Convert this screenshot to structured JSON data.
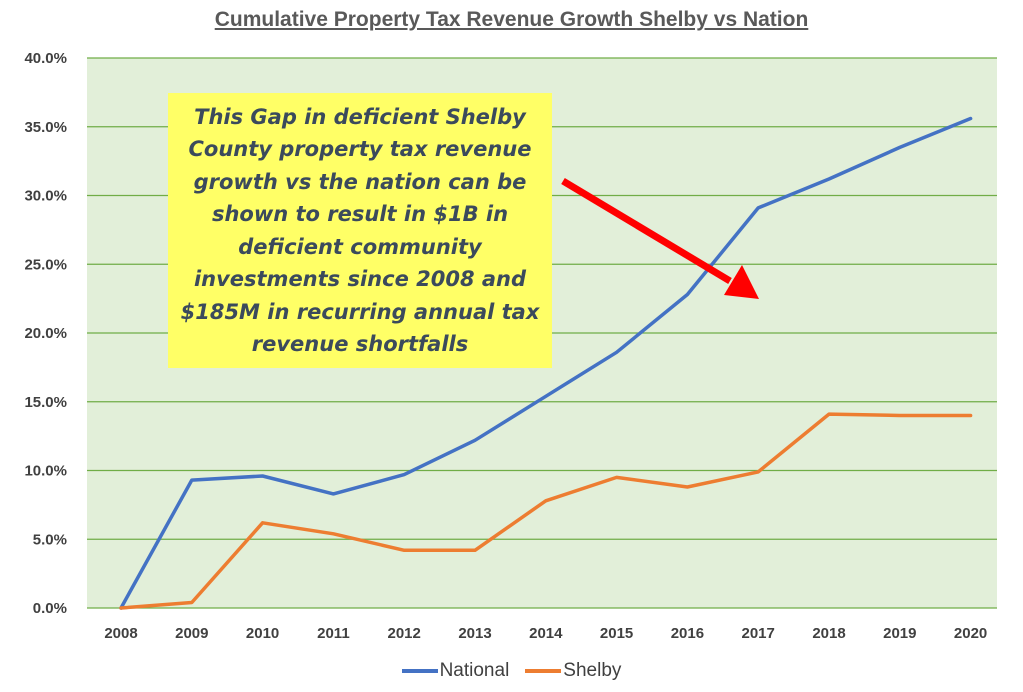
{
  "colors": {
    "plot_bg": "#e2efd9",
    "grid": "#70ad47",
    "national": "#4472c4",
    "shelby": "#ed7d31",
    "arrow": "#ff0000",
    "annotation_bg": "#ffff66"
  },
  "chart_data": {
    "type": "line",
    "title": "Cumulative Property Tax Revenue Growth Shelby vs Nation",
    "xlabel": "",
    "ylabel": "",
    "categories": [
      "2008",
      "2009",
      "2010",
      "2011",
      "2012",
      "2013",
      "2014",
      "2015",
      "2016",
      "2017",
      "2018",
      "2019",
      "2020"
    ],
    "ylim": [
      0,
      40
    ],
    "yticks": [
      "0.0%",
      "5.0%",
      "10.0%",
      "15.0%",
      "20.0%",
      "25.0%",
      "30.0%",
      "35.0%",
      "40.0%"
    ],
    "grid": true,
    "legend_position": "bottom",
    "series": [
      {
        "name": "National",
        "values": [
          0.0,
          9.3,
          9.6,
          8.3,
          9.7,
          12.2,
          15.4,
          18.6,
          22.8,
          29.1,
          31.2,
          33.5,
          35.6
        ]
      },
      {
        "name": "Shelby",
        "values": [
          0.0,
          0.4,
          6.2,
          5.4,
          4.2,
          4.2,
          7.8,
          9.5,
          8.8,
          9.9,
          14.1,
          14.0,
          14.0
        ]
      }
    ],
    "annotation": "This Gap in deficient Shelby County property tax revenue growth vs the nation can be shown to result in $1B in deficient community investments since 2008 and $185M in recurring annual tax revenue shortfalls"
  }
}
